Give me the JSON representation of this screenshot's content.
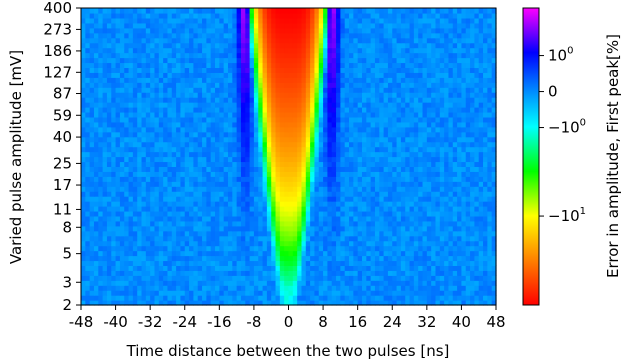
{
  "chart_data": {
    "type": "heatmap",
    "xlabel": "Time distance between the two pulses [ns]",
    "ylabel": "Varied pulse amplitude [mV]",
    "x_ticks": [
      -48,
      -40,
      -32,
      -24,
      -16,
      -8,
      0,
      8,
      16,
      24,
      32,
      40,
      48
    ],
    "xlim": [
      -48,
      48
    ],
    "y_ticks": [
      2,
      3,
      5,
      8,
      11,
      17,
      25,
      40,
      59,
      87,
      127,
      186,
      273,
      400
    ],
    "ylim": [
      2,
      400
    ],
    "y_scale": "log",
    "colorbar": {
      "label": "Error in amplitude, First peak[%]",
      "scale": "symlog",
      "colormap": "gist_rainbow",
      "range": [
        -60,
        4
      ],
      "ticks": [
        {
          "value": 1,
          "label": "10",
          "exp": "0"
        },
        {
          "value": 0,
          "label": "0",
          "exp": ""
        },
        {
          "value": -1,
          "label": "−10",
          "exp": "0"
        },
        {
          "value": -10,
          "label": "−10",
          "exp": "1"
        }
      ]
    },
    "description_values": {
      "background_error": 0,
      "central_peak_center_ns": 0,
      "central_error_at_400mV": -60,
      "central_error_at_2mV": -1,
      "side_lobe_offset_ns": 10,
      "side_lobe_error_at_400mV": 3
    },
    "colors": {
      "background": "#1f78ff",
      "negative_extreme": "#ff0000",
      "positive_extreme": "#ff00ff"
    }
  }
}
